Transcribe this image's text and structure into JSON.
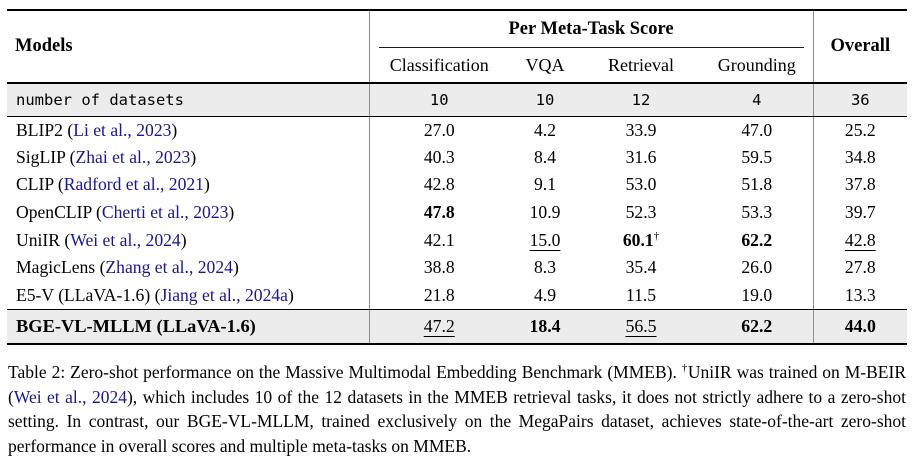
{
  "colors": {
    "citation": "#171796",
    "row_highlight": "#ececec"
  },
  "table": {
    "header": {
      "models": "Models",
      "group": "Per Meta-Task Score",
      "overall": "Overall",
      "subcolumns": [
        "Classification",
        "VQA",
        "Retrieval",
        "Grounding"
      ]
    },
    "punct": {
      "open": "(",
      "close": ")"
    },
    "marks": {
      "dagger": "†"
    },
    "datasets_row": {
      "label": "number of datasets",
      "values": [
        "10",
        "10",
        "12",
        "4",
        "36"
      ]
    },
    "rows": [
      {
        "name": "BLIP2",
        "cite": "Li et al., 2023",
        "values": [
          "27.0",
          "4.2",
          "33.9",
          "47.0",
          "25.2"
        ]
      },
      {
        "name": "SigLIP",
        "cite": "Zhai et al., 2023",
        "values": [
          "40.3",
          "8.4",
          "31.6",
          "59.5",
          "34.8"
        ]
      },
      {
        "name": "CLIP",
        "cite": "Radford et al., 2021",
        "values": [
          "42.8",
          "9.1",
          "53.0",
          "51.8",
          "37.8"
        ]
      },
      {
        "name": "OpenCLIP",
        "cite": "Cherti et al., 2023",
        "values": [
          "47.8",
          "10.9",
          "52.3",
          "53.3",
          "39.7"
        ]
      },
      {
        "name": "UniIR",
        "cite": "Wei et al., 2024",
        "values": [
          "42.1",
          "15.0",
          "60.1",
          "62.2",
          "42.8"
        ]
      },
      {
        "name": "MagicLens",
        "cite": "Zhang et al., 2024",
        "values": [
          "38.8",
          "8.3",
          "35.4",
          "26.0",
          "27.8"
        ]
      },
      {
        "name": "E5-V (LLaVA-1.6)",
        "cite": "Jiang et al., 2024a",
        "values": [
          "21.8",
          "4.9",
          "11.5",
          "19.0",
          "13.3"
        ]
      }
    ],
    "final_row": {
      "name": "BGE-VL-MLLM (LLaVA-1.6)",
      "values": [
        "47.2",
        "18.4",
        "56.5",
        "62.2",
        "44.0"
      ]
    }
  },
  "caption": {
    "part1": "Table 2: Zero-shot performance on the Massive Multimodal Embedding Benchmark (MMEB). ",
    "dagger": "†",
    "part2": "UniIR was trained on M-BEIR (",
    "cite": "Wei et al., 2024",
    "part3": "), which includes 10 of the 12 datasets in the MMEB retrieval tasks, it does not strictly adhere to a zero-shot setting. In contrast, our BGE-VL-MLLM, trained exclusively on the MegaPairs dataset, achieves state-of-the-art zero-shot performance in overall scores and multiple meta-tasks on MMEB."
  }
}
